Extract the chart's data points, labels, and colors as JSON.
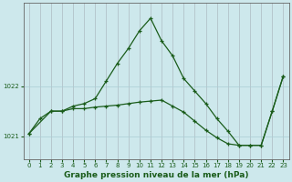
{
  "xlabel": "Graphe pression niveau de la mer (hPa)",
  "background_color": "#cde8ec",
  "line_color": "#1a5c1a",
  "grid_color": "#aacdd4",
  "series1_x": [
    0,
    1,
    2,
    3,
    4,
    5,
    6,
    7,
    8,
    9,
    10,
    11,
    12,
    13,
    14,
    15,
    16,
    17,
    18,
    19,
    20,
    21,
    22,
    23
  ],
  "series1_y": [
    1021.05,
    1021.35,
    1021.5,
    1021.5,
    1021.6,
    1021.65,
    1021.75,
    1022.1,
    1022.45,
    1022.75,
    1023.1,
    1023.35,
    1022.9,
    1022.6,
    1022.15,
    1021.9,
    1021.65,
    1021.35,
    1021.1,
    1020.82,
    1020.82,
    1020.82,
    1021.5,
    1022.2
  ],
  "series2_x": [
    0,
    2,
    3,
    4,
    5,
    6,
    7,
    8,
    9,
    10,
    11,
    12,
    13,
    14,
    15,
    16,
    17,
    18,
    19,
    20,
    21,
    22,
    23
  ],
  "series2_y": [
    1021.05,
    1021.5,
    1021.5,
    1021.55,
    1021.55,
    1021.58,
    1021.6,
    1021.62,
    1021.65,
    1021.68,
    1021.7,
    1021.72,
    1021.6,
    1021.48,
    1021.3,
    1021.12,
    1020.97,
    1020.85,
    1020.82,
    1020.82,
    1020.82,
    1021.5,
    1022.2
  ],
  "yticks": [
    1021.0,
    1022.0
  ],
  "ylim": [
    1020.55,
    1023.65
  ],
  "xlim": [
    -0.5,
    23.5
  ],
  "xticks": [
    0,
    1,
    2,
    3,
    4,
    5,
    6,
    7,
    8,
    9,
    10,
    11,
    12,
    13,
    14,
    15,
    16,
    17,
    18,
    19,
    20,
    21,
    22,
    23
  ]
}
